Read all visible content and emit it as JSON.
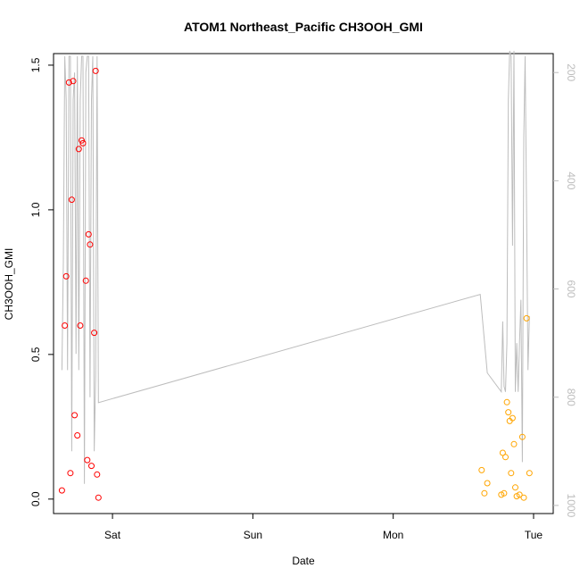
{
  "chart_data": {
    "type": "scatter",
    "title": "ATOM1 Northeast_Pacific CH3OOH_GMI",
    "xlabel": "Date",
    "ylabel": "CH3OOH_GMI",
    "x_unit": "days",
    "x_range": [
      -0.42,
      3.14
    ],
    "ylim": [
      -0.05,
      1.54
    ],
    "y_ticks": [
      0.0,
      0.5,
      1.0,
      1.5
    ],
    "y_tick_labels": [
      "0.0",
      "0.5",
      "1.0",
      "1.5"
    ],
    "x_ticks": [
      0,
      1,
      2,
      3
    ],
    "x_tick_labels": [
      "Sat",
      "Sun",
      "Mon",
      "Tue"
    ],
    "right_axis": {
      "range": [
        1015,
        165
      ],
      "reversed": true,
      "ticks": [
        200,
        400,
        600,
        800,
        1000
      ],
      "tick_labels": [
        "200",
        "400",
        "600",
        "800",
        "1000"
      ],
      "color": "#bdbdbd"
    },
    "colors": {
      "series1": "#ff0000",
      "series2": "#ffa500",
      "line": "#bdbdbd"
    },
    "series": [
      {
        "marker": "circle-open",
        "color": "#ff0000",
        "x": [
          -0.36,
          -0.34,
          -0.33,
          -0.31,
          -0.3,
          -0.29,
          -0.28,
          -0.27,
          -0.25,
          -0.24,
          -0.23,
          -0.22,
          -0.21,
          -0.19,
          -0.18,
          -0.17,
          -0.16,
          -0.15,
          -0.13,
          -0.12,
          -0.11,
          -0.1
        ],
        "y": [
          0.03,
          0.6,
          0.77,
          1.44,
          0.09,
          1.035,
          1.445,
          0.29,
          0.22,
          1.21,
          0.6,
          1.24,
          1.23,
          0.755,
          0.135,
          0.915,
          0.88,
          0.115,
          0.575,
          1.48,
          0.085,
          0.005
        ]
      },
      {
        "marker": "circle-open",
        "color": "#ffa500",
        "x": [
          2.63,
          2.65,
          2.67,
          2.77,
          2.78,
          2.79,
          2.8,
          2.81,
          2.82,
          2.83,
          2.84,
          2.85,
          2.86,
          2.87,
          2.88,
          2.9,
          2.92,
          2.93,
          2.95,
          2.97
        ],
        "y": [
          0.1,
          0.02,
          0.055,
          0.015,
          0.16,
          0.02,
          0.145,
          0.335,
          0.3,
          0.27,
          0.09,
          0.28,
          0.19,
          0.04,
          0.01,
          0.015,
          0.215,
          0.005,
          0.625,
          0.09
        ]
      }
    ],
    "pressure_line": {
      "color": "#bdbdbd",
      "x": [
        -0.36,
        -0.35,
        -0.34,
        -0.33,
        -0.32,
        -0.31,
        -0.3,
        -0.29,
        -0.28,
        -0.27,
        -0.26,
        -0.25,
        -0.24,
        -0.23,
        -0.22,
        -0.21,
        -0.2,
        -0.19,
        -0.18,
        -0.17,
        -0.16,
        -0.15,
        -0.14,
        -0.13,
        -0.12,
        -0.11,
        -0.1,
        2.62,
        2.67,
        2.77,
        2.78,
        2.79,
        2.8,
        2.81,
        2.82,
        2.83,
        2.84,
        2.85,
        2.86,
        2.87,
        2.88,
        2.89,
        2.9,
        2.91,
        2.92,
        2.93,
        2.94,
        2.95,
        2.96,
        2.97
      ],
      "y": [
        750,
        550,
        170,
        250,
        750,
        170,
        170,
        900,
        250,
        200,
        720,
        170,
        750,
        250,
        170,
        170,
        960,
        200,
        170,
        170,
        800,
        250,
        170,
        900,
        760,
        170,
        810,
        610,
        755,
        790,
        660,
        780,
        790,
        700,
        250,
        160,
        170,
        520,
        160,
        790,
        700,
        790,
        700,
        620,
        920,
        320,
        170,
        450,
        750,
        650
      ]
    }
  }
}
